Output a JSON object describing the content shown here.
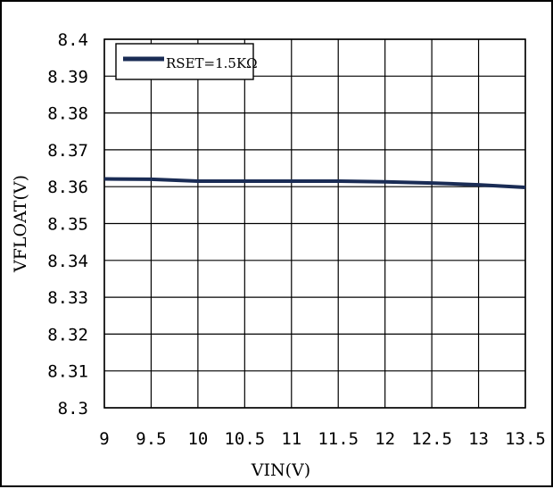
{
  "chart_data": {
    "type": "line",
    "title": "",
    "xlabel": "VIN(V)",
    "ylabel": "VFLOAT(V)",
    "xlim": [
      9,
      13.5
    ],
    "ylim": [
      8.3,
      8.4
    ],
    "x_ticks": [
      "9",
      "9.5",
      "10",
      "10.5",
      "11",
      "11.5",
      "12",
      "12.5",
      "13",
      "13.5"
    ],
    "y_ticks": [
      "8.4",
      "8.39",
      "8.38",
      "8.37",
      "8.36",
      "8.35",
      "8.34",
      "8.33",
      "8.32",
      "8.31",
      "8.3"
    ],
    "grid": true,
    "legend_position": "top-left",
    "series": [
      {
        "name": "RSET=1.5KΩ",
        "color": "#1a2c55",
        "x": [
          9,
          9.5,
          10,
          10.5,
          11,
          11.5,
          12,
          12.5,
          13,
          13.5
        ],
        "values": [
          8.3621,
          8.362,
          8.3615,
          8.3615,
          8.3615,
          8.3615,
          8.3613,
          8.361,
          8.3605,
          8.3598
        ]
      }
    ]
  }
}
